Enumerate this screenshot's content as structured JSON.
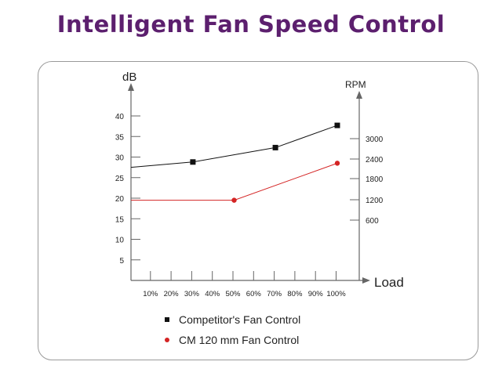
{
  "title": "Intelligent Fan Speed Control",
  "chart_data": {
    "type": "line",
    "xlabel": "Load",
    "ylabel_left": "dB",
    "ylabel_right": "RPM",
    "x_ticks": [
      "10%",
      "20%",
      "30%",
      "40%",
      "50%",
      "60%",
      "70%",
      "80%",
      "90%",
      "100%"
    ],
    "y_left_ticks": [
      5,
      10,
      15,
      20,
      25,
      30,
      35,
      40
    ],
    "y_right_ticks": [
      600,
      1200,
      1800,
      2400,
      3000
    ],
    "ylim_left": [
      0,
      45
    ],
    "series": [
      {
        "name": "Competitor's Fan Control",
        "color": "#111111",
        "marker": "square",
        "x": [
          0,
          30,
          70,
          100
        ],
        "y": [
          27.5,
          28.8,
          32.3,
          37.7
        ],
        "marked_x": [
          30,
          70,
          100
        ]
      },
      {
        "name": "CM 120 mm Fan Control",
        "color": "#d42424",
        "marker": "circle",
        "x": [
          0,
          50,
          100
        ],
        "y": [
          19.5,
          19.5,
          28.5
        ],
        "marked_x": [
          50,
          100
        ]
      }
    ],
    "grid": false,
    "legend_position": "bottom-center"
  }
}
